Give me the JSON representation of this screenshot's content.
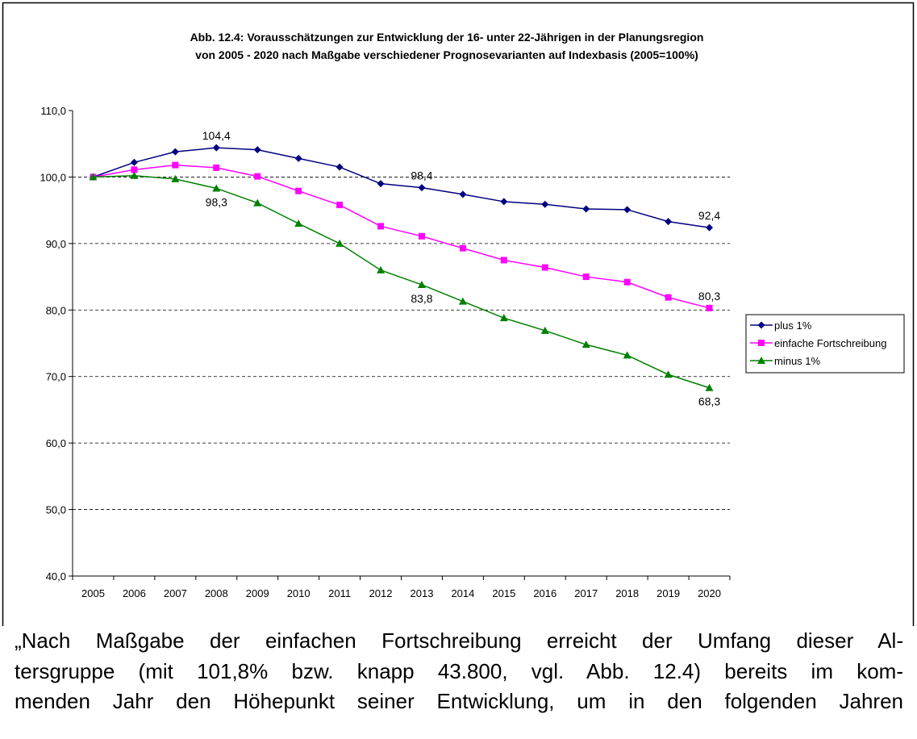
{
  "chart_data": {
    "type": "line",
    "title_lines": [
      "Abb. 12.4: Vorausschätzungen zur Entwicklung  der 16- unter 22-Jährigen in der Planungsregion",
      "von 2005 - 2020 nach Maßgabe verschiedener Prognosevarianten auf Indexbasis (2005=100%)"
    ],
    "categories": [
      "2005",
      "2006",
      "2007",
      "2008",
      "2009",
      "2010",
      "2011",
      "2012",
      "2013",
      "2014",
      "2015",
      "2016",
      "2017",
      "2018",
      "2019",
      "2020"
    ],
    "series": [
      {
        "name": "plus 1%",
        "color": "#000080",
        "marker": "diamond",
        "values": [
          100,
          102.2,
          103.8,
          104.4,
          104.1,
          102.8,
          101.5,
          99.0,
          98.4,
          97.4,
          96.3,
          95.9,
          95.2,
          95.1,
          93.3,
          92.4
        ],
        "value_labels": [
          null,
          null,
          null,
          "104,4",
          null,
          null,
          null,
          null,
          "98,4",
          null,
          null,
          null,
          null,
          null,
          null,
          "92,4"
        ]
      },
      {
        "name": "einfache Fortschreibung",
        "color": "#ff00ff",
        "marker": "square",
        "values": [
          100,
          101.1,
          101.8,
          101.4,
          100.1,
          97.9,
          95.8,
          92.6,
          91.1,
          89.3,
          87.5,
          86.4,
          85.0,
          84.2,
          81.9,
          80.3
        ],
        "value_labels": [
          null,
          null,
          null,
          null,
          null,
          null,
          null,
          null,
          null,
          null,
          null,
          null,
          null,
          null,
          null,
          "80,3"
        ]
      },
      {
        "name": "minus 1%",
        "color": "#008000",
        "marker": "triangle",
        "values": [
          100,
          100.2,
          99.7,
          98.3,
          96.1,
          93.0,
          90.0,
          86.0,
          83.8,
          81.3,
          78.8,
          76.9,
          74.8,
          73.2,
          70.3,
          68.3
        ],
        "value_labels": [
          null,
          null,
          null,
          "98,3",
          null,
          null,
          null,
          null,
          "83,8",
          null,
          null,
          null,
          null,
          null,
          null,
          "68,3"
        ]
      }
    ],
    "ylim": [
      40,
      110
    ],
    "yticks": [
      {
        "value": 40,
        "label": "40,0"
      },
      {
        "value": 50,
        "label": "50,0"
      },
      {
        "value": 60,
        "label": "60,0"
      },
      {
        "value": 70,
        "label": "70,0"
      },
      {
        "value": 80,
        "label": "80,0"
      },
      {
        "value": 90,
        "label": "90,0"
      },
      {
        "value": 100,
        "label": "100,0"
      },
      {
        "value": 110,
        "label": "110,0"
      }
    ],
    "grid": true,
    "legend": "right"
  },
  "text_lines": [
    "„Nach Maßgabe der einfachen Fortschreibung erreicht der Umfang dieser Al-",
    "tersgruppe (mit 101,8% bzw. knapp 43.800, vgl. Abb. 12.4) bereits im kom-",
    "menden Jahr den Höhepunkt seiner Entwicklung, um in den folgenden Jahren"
  ]
}
